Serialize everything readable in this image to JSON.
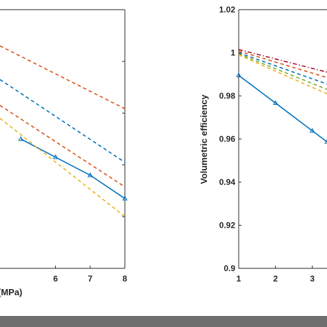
{
  "chart_data": [
    {
      "type": "line",
      "xlabel": "(MPa)",
      "ylabel": "",
      "xticks": [
        6,
        7,
        8
      ],
      "yticks": [],
      "xlim": [
        4.4,
        8
      ],
      "ylim": [
        0,
        1
      ],
      "grid": false,
      "series": [
        {
          "color": "#0072BD",
          "style": "solid",
          "marker": "triangle",
          "x": [
            5,
            6,
            7,
            8
          ],
          "y": [
            0.5,
            0.43,
            0.36,
            0.27
          ]
        },
        {
          "color": "#D95319",
          "style": "dashed",
          "x": [
            4.4,
            8
          ],
          "y": [
            0.86,
            0.617
          ]
        },
        {
          "color": "#0072BD",
          "style": "dashed",
          "x": [
            4.4,
            8
          ],
          "y": [
            0.73,
            0.41
          ]
        },
        {
          "color": "#D95319",
          "style": "dashed",
          "x": [
            4.4,
            8
          ],
          "y": [
            0.63,
            0.315
          ]
        },
        {
          "color": "#EDB120",
          "style": "dashed",
          "x": [
            4.4,
            8
          ],
          "y": [
            0.58,
            0.2
          ]
        }
      ]
    },
    {
      "type": "line",
      "xlabel": "",
      "ylabel": "Volumetric efficiency",
      "xticks": [
        1,
        2,
        3
      ],
      "yticks": [
        0.9,
        0.92,
        0.94,
        0.96,
        0.98,
        1,
        1.02
      ],
      "ytick_labels": [
        "0.9",
        "0.92",
        "0.94",
        "0.96",
        "0.98",
        "1",
        "1.02"
      ],
      "xlim": [
        1,
        3.4
      ],
      "ylim": [
        0.9,
        1.02
      ],
      "grid": false,
      "series": [
        {
          "color": "#0072BD",
          "style": "solid",
          "marker": "triangle",
          "x": [
            1,
            2,
            3,
            3.4
          ],
          "y": [
            0.9895,
            0.9767,
            0.9638,
            0.9587
          ]
        },
        {
          "color": "#A2142F",
          "style": "dashdot",
          "x": [
            1,
            3.4
          ],
          "y": [
            1.0015,
            0.991
          ]
        },
        {
          "color": "#D95319",
          "style": "dashed",
          "x": [
            1,
            3.4
          ],
          "y": [
            1.0008,
            0.9885
          ]
        },
        {
          "color": "#0072BD",
          "style": "dashed",
          "x": [
            1,
            3.4
          ],
          "y": [
            1.0,
            0.9855
          ]
        },
        {
          "color": "#77AC30",
          "style": "dashed",
          "x": [
            1,
            3.4
          ],
          "y": [
            0.9995,
            0.983
          ]
        },
        {
          "color": "#EDB120",
          "style": "dashed",
          "x": [
            1,
            3.4
          ],
          "y": [
            0.999,
            0.981
          ]
        }
      ]
    }
  ]
}
